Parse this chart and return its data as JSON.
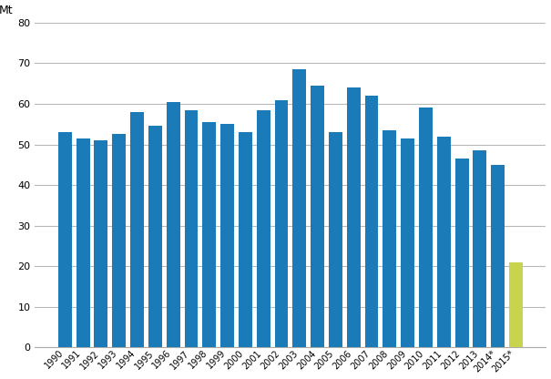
{
  "categories": [
    "1990",
    "1991",
    "1992",
    "1993",
    "1994",
    "1995",
    "1996",
    "1997",
    "1998",
    "1999",
    "2000",
    "2001",
    "2002",
    "2003",
    "2004",
    "2005",
    "2006",
    "2007",
    "2008",
    "2009",
    "2010",
    "2011",
    "2012",
    "2013",
    "2014*",
    "2015*"
  ],
  "values": [
    53.0,
    51.5,
    51.0,
    52.5,
    58.0,
    54.5,
    60.5,
    58.5,
    55.5,
    55.0,
    53.0,
    58.5,
    61.0,
    68.5,
    64.5,
    53.0,
    64.0,
    62.0,
    53.5,
    51.5,
    59.0,
    52.0,
    46.5,
    48.5,
    45.0,
    21.0
  ],
  "bar_colors": [
    "#1b7ab8",
    "#1b7ab8",
    "#1b7ab8",
    "#1b7ab8",
    "#1b7ab8",
    "#1b7ab8",
    "#1b7ab8",
    "#1b7ab8",
    "#1b7ab8",
    "#1b7ab8",
    "#1b7ab8",
    "#1b7ab8",
    "#1b7ab8",
    "#1b7ab8",
    "#1b7ab8",
    "#1b7ab8",
    "#1b7ab8",
    "#1b7ab8",
    "#1b7ab8",
    "#1b7ab8",
    "#1b7ab8",
    "#1b7ab8",
    "#1b7ab8",
    "#1b7ab8",
    "#1b7ab8",
    "#c8d44e"
  ],
  "ylabel": "Mt",
  "ylim": [
    0,
    80
  ],
  "yticks": [
    0,
    10,
    20,
    30,
    40,
    50,
    60,
    70,
    80
  ],
  "background_color": "#ffffff",
  "grid_color": "#b8b8b8",
  "bar_edge_color": "none",
  "label_rotation": 45,
  "figwidth": 6.05,
  "figheight": 4.16,
  "dpi": 100
}
